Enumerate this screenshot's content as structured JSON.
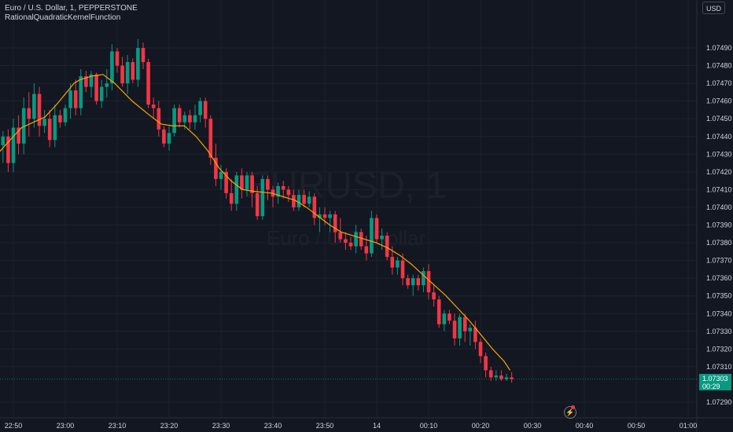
{
  "header": {
    "symbol_line": "Euro / U.S. Dollar, 1, PEPPERSTONE",
    "indicator": "RationalQuadraticKernelFunction"
  },
  "currency_button": "USD",
  "watermark": {
    "line1": "EURUSD, 1",
    "line2": "Euro / U.S. Dollar"
  },
  "last_price": {
    "price": "1.07303",
    "countdown": "00:29"
  },
  "colors": {
    "background": "#131722",
    "up": "#089981",
    "down": "#f23645",
    "kernel": "#f7a600",
    "grid": "#1e222d",
    "axis_text": "#d1d4dc"
  },
  "icons": {
    "replay": "lightning-icon"
  },
  "chart_data": {
    "type": "candlestick",
    "title": "Euro / U.S. Dollar, 1, PEPPERSTONE",
    "series": [
      {
        "name": "EURUSD"
      },
      {
        "name": "RationalQuadraticKernelFunction"
      }
    ],
    "y_ticks": [
      "1.07490",
      "1.07480",
      "1.07470",
      "1.07460",
      "1.07450",
      "1.07440",
      "1.07430",
      "1.07420",
      "1.07410",
      "1.07400",
      "1.07390",
      "1.07380",
      "1.07370",
      "1.07360",
      "1.07350",
      "1.07340",
      "1.07330",
      "1.07320",
      "1.07310",
      "1.07290"
    ],
    "y_tick_values": [
      1.0749,
      1.0748,
      1.0747,
      1.0746,
      1.0745,
      1.0744,
      1.0743,
      1.0742,
      1.0741,
      1.074,
      1.0739,
      1.0738,
      1.0737,
      1.0736,
      1.0735,
      1.0734,
      1.0733,
      1.0732,
      1.0731,
      1.0729
    ],
    "ylim": [
      1.07285,
      1.07515
    ],
    "x_ticks": [
      "22:50",
      "23:00",
      "23:10",
      "23:20",
      "23:30",
      "23:40",
      "23:50",
      "14",
      "00:10",
      "00:20",
      "00:30",
      "00:40",
      "00:50",
      "01:00"
    ],
    "x_range_minutes": [
      -70,
      61
    ],
    "x_tick_minutes": [
      -70,
      -60,
      -50,
      -40,
      -30,
      -20,
      -10,
      0,
      10,
      20,
      30,
      40,
      50,
      60
    ],
    "grid": true,
    "legend": "top-left",
    "last_close": 1.07303,
    "candles": [
      {
        "o": 1.07435,
        "h": 1.07448,
        "l": 1.07427,
        "c": 1.07447
      },
      {
        "o": 1.07445,
        "h": 1.0745,
        "l": 1.07428,
        "c": 1.07432
      },
      {
        "o": 1.07435,
        "h": 1.07443,
        "l": 1.07425,
        "c": 1.0744
      },
      {
        "o": 1.0744,
        "h": 1.07444,
        "l": 1.0742,
        "c": 1.07425
      },
      {
        "o": 1.07425,
        "h": 1.0745,
        "l": 1.0742,
        "c": 1.07445
      },
      {
        "o": 1.07445,
        "h": 1.07452,
        "l": 1.0743,
        "c": 1.07436
      },
      {
        "o": 1.07436,
        "h": 1.07462,
        "l": 1.0743,
        "c": 1.07456
      },
      {
        "o": 1.07456,
        "h": 1.07465,
        "l": 1.0744,
        "c": 1.0745
      },
      {
        "o": 1.0745,
        "h": 1.0747,
        "l": 1.07445,
        "c": 1.07464
      },
      {
        "o": 1.07464,
        "h": 1.07468,
        "l": 1.0744,
        "c": 1.07446
      },
      {
        "o": 1.07446,
        "h": 1.07455,
        "l": 1.07442,
        "c": 1.0745
      },
      {
        "o": 1.0745,
        "h": 1.07455,
        "l": 1.07434,
        "c": 1.07438
      },
      {
        "o": 1.07438,
        "h": 1.07458,
        "l": 1.07434,
        "c": 1.07452
      },
      {
        "o": 1.07452,
        "h": 1.07455,
        "l": 1.07445,
        "c": 1.07448
      },
      {
        "o": 1.07448,
        "h": 1.07458,
        "l": 1.07446,
        "c": 1.07456
      },
      {
        "o": 1.07456,
        "h": 1.0747,
        "l": 1.0745,
        "c": 1.07466
      },
      {
        "o": 1.07466,
        "h": 1.07472,
        "l": 1.07452,
        "c": 1.07456
      },
      {
        "o": 1.07456,
        "h": 1.07478,
        "l": 1.07452,
        "c": 1.07474
      },
      {
        "o": 1.07474,
        "h": 1.07477,
        "l": 1.07465,
        "c": 1.07468
      },
      {
        "o": 1.07468,
        "h": 1.07477,
        "l": 1.07462,
        "c": 1.07475
      },
      {
        "o": 1.07475,
        "h": 1.07476,
        "l": 1.07458,
        "c": 1.0746
      },
      {
        "o": 1.0746,
        "h": 1.07472,
        "l": 1.07456,
        "c": 1.07468
      },
      {
        "o": 1.07468,
        "h": 1.07478,
        "l": 1.07462,
        "c": 1.0747
      },
      {
        "o": 1.0747,
        "h": 1.07492,
        "l": 1.07466,
        "c": 1.07488
      },
      {
        "o": 1.07488,
        "h": 1.0749,
        "l": 1.07476,
        "c": 1.0748
      },
      {
        "o": 1.0748,
        "h": 1.07485,
        "l": 1.07468,
        "c": 1.0747
      },
      {
        "o": 1.0747,
        "h": 1.07486,
        "l": 1.07464,
        "c": 1.07482
      },
      {
        "o": 1.07482,
        "h": 1.07484,
        "l": 1.0747,
        "c": 1.07472
      },
      {
        "o": 1.07472,
        "h": 1.07495,
        "l": 1.07468,
        "c": 1.0749
      },
      {
        "o": 1.0749,
        "h": 1.07493,
        "l": 1.07478,
        "c": 1.07482
      },
      {
        "o": 1.07482,
        "h": 1.07484,
        "l": 1.07456,
        "c": 1.07458
      },
      {
        "o": 1.07458,
        "h": 1.07462,
        "l": 1.0745,
        "c": 1.07456
      },
      {
        "o": 1.07456,
        "h": 1.0746,
        "l": 1.0744,
        "c": 1.07444
      },
      {
        "o": 1.07444,
        "h": 1.07446,
        "l": 1.07434,
        "c": 1.07436
      },
      {
        "o": 1.07436,
        "h": 1.07446,
        "l": 1.07432,
        "c": 1.07442
      },
      {
        "o": 1.07442,
        "h": 1.07458,
        "l": 1.0744,
        "c": 1.07456
      },
      {
        "o": 1.07456,
        "h": 1.07458,
        "l": 1.07445,
        "c": 1.07448
      },
      {
        "o": 1.07448,
        "h": 1.07454,
        "l": 1.07444,
        "c": 1.07452
      },
      {
        "o": 1.07452,
        "h": 1.07455,
        "l": 1.07444,
        "c": 1.07448
      },
      {
        "o": 1.07448,
        "h": 1.07458,
        "l": 1.07444,
        "c": 1.07452
      },
      {
        "o": 1.07452,
        "h": 1.07462,
        "l": 1.07448,
        "c": 1.0746
      },
      {
        "o": 1.0746,
        "h": 1.07462,
        "l": 1.07445,
        "c": 1.0745
      },
      {
        "o": 1.0745,
        "h": 1.07452,
        "l": 1.07424,
        "c": 1.07428
      },
      {
        "o": 1.07428,
        "h": 1.07436,
        "l": 1.07412,
        "c": 1.07416
      },
      {
        "o": 1.07416,
        "h": 1.07424,
        "l": 1.0741,
        "c": 1.0742
      },
      {
        "o": 1.0742,
        "h": 1.07422,
        "l": 1.07405,
        "c": 1.07408
      },
      {
        "o": 1.07408,
        "h": 1.07416,
        "l": 1.07398,
        "c": 1.07402
      },
      {
        "o": 1.07402,
        "h": 1.0742,
        "l": 1.07398,
        "c": 1.07418
      },
      {
        "o": 1.07418,
        "h": 1.07422,
        "l": 1.07405,
        "c": 1.0741
      },
      {
        "o": 1.0741,
        "h": 1.0742,
        "l": 1.07406,
        "c": 1.07418
      },
      {
        "o": 1.07418,
        "h": 1.0742,
        "l": 1.074,
        "c": 1.07408
      },
      {
        "o": 1.07408,
        "h": 1.07412,
        "l": 1.07393,
        "c": 1.07395
      },
      {
        "o": 1.07395,
        "h": 1.07418,
        "l": 1.07393,
        "c": 1.07416
      },
      {
        "o": 1.07416,
        "h": 1.07418,
        "l": 1.07404,
        "c": 1.0741
      },
      {
        "o": 1.0741,
        "h": 1.07412,
        "l": 1.074,
        "c": 1.07406
      },
      {
        "o": 1.07406,
        "h": 1.07414,
        "l": 1.07402,
        "c": 1.07412
      },
      {
        "o": 1.07412,
        "h": 1.07415,
        "l": 1.07405,
        "c": 1.0741
      },
      {
        "o": 1.0741,
        "h": 1.07412,
        "l": 1.07403,
        "c": 1.07407
      },
      {
        "o": 1.07407,
        "h": 1.0741,
        "l": 1.07398,
        "c": 1.074
      },
      {
        "o": 1.074,
        "h": 1.0741,
        "l": 1.07398,
        "c": 1.07407
      },
      {
        "o": 1.07407,
        "h": 1.0741,
        "l": 1.074,
        "c": 1.07402
      },
      {
        "o": 1.07402,
        "h": 1.07409,
        "l": 1.074,
        "c": 1.07406
      },
      {
        "o": 1.07406,
        "h": 1.07408,
        "l": 1.0739,
        "c": 1.07394
      },
      {
        "o": 1.07394,
        "h": 1.074,
        "l": 1.07386,
        "c": 1.07396
      },
      {
        "o": 1.07396,
        "h": 1.074,
        "l": 1.0739,
        "c": 1.07394
      },
      {
        "o": 1.07394,
        "h": 1.07398,
        "l": 1.07386,
        "c": 1.07396
      },
      {
        "o": 1.07396,
        "h": 1.07398,
        "l": 1.0738,
        "c": 1.07386
      },
      {
        "o": 1.07386,
        "h": 1.07394,
        "l": 1.0738,
        "c": 1.07382
      },
      {
        "o": 1.07382,
        "h": 1.07386,
        "l": 1.07376,
        "c": 1.0738
      },
      {
        "o": 1.0738,
        "h": 1.07383,
        "l": 1.07376,
        "c": 1.07378
      },
      {
        "o": 1.07378,
        "h": 1.0739,
        "l": 1.07374,
        "c": 1.07386
      },
      {
        "o": 1.07386,
        "h": 1.07388,
        "l": 1.07376,
        "c": 1.07378
      },
      {
        "o": 1.07378,
        "h": 1.07384,
        "l": 1.0737,
        "c": 1.07374
      },
      {
        "o": 1.07374,
        "h": 1.07398,
        "l": 1.07372,
        "c": 1.07394
      },
      {
        "o": 1.07394,
        "h": 1.07396,
        "l": 1.0738,
        "c": 1.07382
      },
      {
        "o": 1.07382,
        "h": 1.07388,
        "l": 1.07376,
        "c": 1.07384
      },
      {
        "o": 1.07384,
        "h": 1.07386,
        "l": 1.0737,
        "c": 1.07372
      },
      {
        "o": 1.07372,
        "h": 1.07378,
        "l": 1.07362,
        "c": 1.07366
      },
      {
        "o": 1.07366,
        "h": 1.07372,
        "l": 1.07362,
        "c": 1.0737
      },
      {
        "o": 1.0737,
        "h": 1.07374,
        "l": 1.07356,
        "c": 1.0736
      },
      {
        "o": 1.0736,
        "h": 1.07362,
        "l": 1.07354,
        "c": 1.07356
      },
      {
        "o": 1.07356,
        "h": 1.07362,
        "l": 1.0735,
        "c": 1.0736
      },
      {
        "o": 1.0736,
        "h": 1.07362,
        "l": 1.07353,
        "c": 1.07356
      },
      {
        "o": 1.07356,
        "h": 1.07366,
        "l": 1.07352,
        "c": 1.07364
      },
      {
        "o": 1.07364,
        "h": 1.07368,
        "l": 1.07348,
        "c": 1.07352
      },
      {
        "o": 1.07352,
        "h": 1.07356,
        "l": 1.07344,
        "c": 1.07348
      },
      {
        "o": 1.07348,
        "h": 1.0735,
        "l": 1.07332,
        "c": 1.07334
      },
      {
        "o": 1.07334,
        "h": 1.07342,
        "l": 1.0733,
        "c": 1.0734
      },
      {
        "o": 1.0734,
        "h": 1.07342,
        "l": 1.07334,
        "c": 1.07336
      },
      {
        "o": 1.07336,
        "h": 1.0734,
        "l": 1.07322,
        "c": 1.07326
      },
      {
        "o": 1.07326,
        "h": 1.0734,
        "l": 1.07322,
        "c": 1.07338
      },
      {
        "o": 1.07338,
        "h": 1.0734,
        "l": 1.07324,
        "c": 1.0733
      },
      {
        "o": 1.0733,
        "h": 1.07334,
        "l": 1.07322,
        "c": 1.07332
      },
      {
        "o": 1.07332,
        "h": 1.07336,
        "l": 1.0732,
        "c": 1.07324
      },
      {
        "o": 1.07324,
        "h": 1.07326,
        "l": 1.07312,
        "c": 1.07316
      },
      {
        "o": 1.07316,
        "h": 1.07318,
        "l": 1.07304,
        "c": 1.07308
      },
      {
        "o": 1.07308,
        "h": 1.0731,
        "l": 1.07302,
        "c": 1.07304
      },
      {
        "o": 1.07304,
        "h": 1.07308,
        "l": 1.07302,
        "c": 1.07305
      },
      {
        "o": 1.07305,
        "h": 1.07308,
        "l": 1.07302,
        "c": 1.07303
      },
      {
        "o": 1.07303,
        "h": 1.07306,
        "l": 1.07302,
        "c": 1.07304
      },
      {
        "o": 1.07304,
        "h": 1.07307,
        "l": 1.07301,
        "c": 1.07303
      }
    ],
    "kernel_line": [
      [
        0,
        1.07427
      ],
      [
        6,
        1.07438
      ],
      [
        10,
        1.07445
      ],
      [
        14,
        1.07448
      ],
      [
        18,
        1.07451
      ],
      [
        22,
        1.07458
      ],
      [
        26,
        1.07466
      ],
      [
        28,
        1.0747
      ],
      [
        30,
        1.07472
      ],
      [
        34,
        1.07474
      ],
      [
        38,
        1.07475
      ],
      [
        42,
        1.0747
      ],
      [
        48,
        1.0746
      ],
      [
        54,
        1.07452
      ],
      [
        58,
        1.07447
      ],
      [
        62,
        1.07446
      ],
      [
        66,
        1.07446
      ],
      [
        70,
        1.0744
      ],
      [
        74,
        1.07432
      ],
      [
        78,
        1.07422
      ],
      [
        82,
        1.07415
      ],
      [
        86,
        1.0741
      ],
      [
        90,
        1.07409
      ],
      [
        96,
        1.07408
      ],
      [
        100,
        1.07406
      ],
      [
        104,
        1.07404
      ],
      [
        108,
        1.074
      ],
      [
        112,
        1.07395
      ],
      [
        116,
        1.0739
      ],
      [
        120,
        1.07386
      ],
      [
        124,
        1.07384
      ],
      [
        128,
        1.07382
      ],
      [
        132,
        1.0738
      ],
      [
        136,
        1.07377
      ],
      [
        140,
        1.07373
      ],
      [
        144,
        1.07368
      ],
      [
        148,
        1.07362
      ],
      [
        152,
        1.07356
      ],
      [
        156,
        1.0735
      ],
      [
        160,
        1.07343
      ],
      [
        164,
        1.07336
      ],
      [
        168,
        1.07328
      ],
      [
        172,
        1.0732
      ],
      [
        176,
        1.07313
      ],
      [
        178,
        1.07308
      ]
    ]
  }
}
